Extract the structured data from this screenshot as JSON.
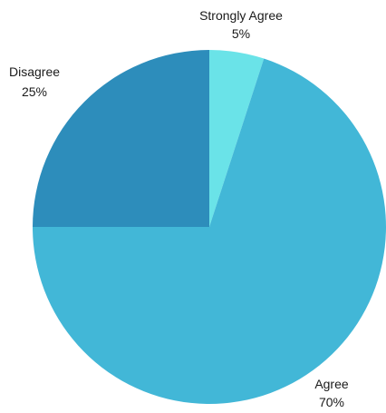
{
  "chart_data": {
    "type": "pie",
    "title": "",
    "start_angle_deg": 0,
    "direction": "clockwise",
    "slices": [
      {
        "label": "Strongly Agree",
        "value": 5,
        "value_label": "5%",
        "color": "#6ae3e8"
      },
      {
        "label": "Agree",
        "value": 70,
        "value_label": "70%",
        "color": "#42b7d7"
      },
      {
        "label": "Disagree",
        "value": 25,
        "value_label": "25%",
        "color": "#2d8dbb"
      }
    ],
    "legend": "none",
    "data_labels": "outside"
  }
}
